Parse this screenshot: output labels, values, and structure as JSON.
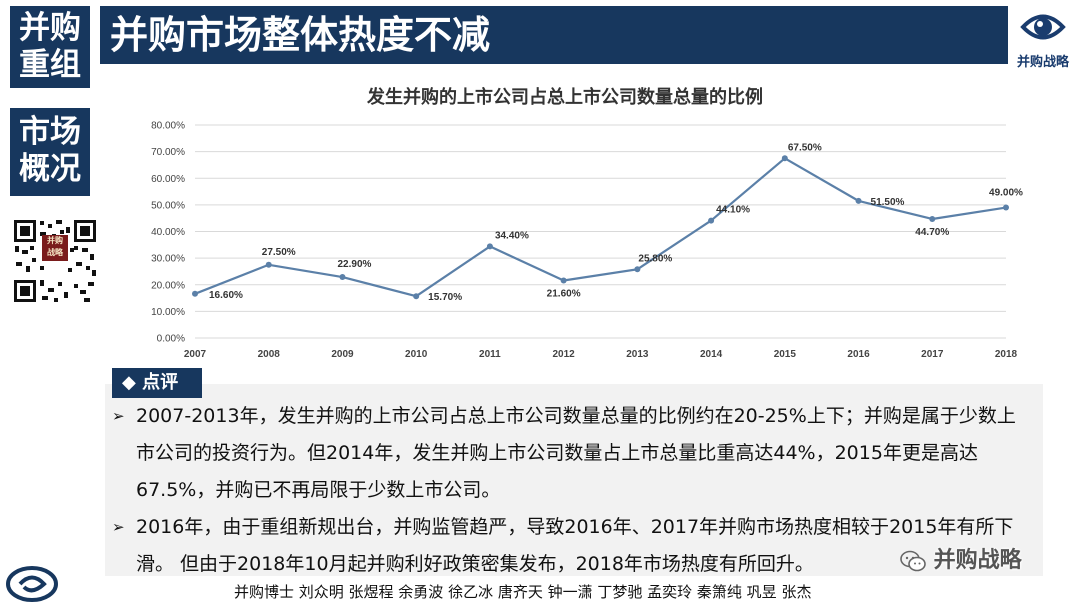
{
  "sidebar": {
    "box1": [
      "并购",
      "重组"
    ],
    "box2": [
      "市场",
      "概况"
    ],
    "qr_badge": "并购 战略"
  },
  "header": {
    "title": "并购市场整体热度不减"
  },
  "logo": {
    "text": "并购战略"
  },
  "colors": {
    "brand": "#17375E",
    "line": "#5B80A8",
    "panel": "#F2F2F2"
  },
  "chart_data": {
    "type": "line",
    "title": "发生并购的上市公司占总上市公司数量总量的比例",
    "x": [
      "2007",
      "2008",
      "2009",
      "2010",
      "2011",
      "2012",
      "2013",
      "2014",
      "2015",
      "2016",
      "2017",
      "2018"
    ],
    "values": [
      16.6,
      27.5,
      22.9,
      15.7,
      34.4,
      21.6,
      25.8,
      44.1,
      67.5,
      51.5,
      44.7,
      49.0
    ],
    "data_labels": [
      "16.60%",
      "27.50%",
      "22.90%",
      "15.70%",
      "34.40%",
      "21.60%",
      "25.80%",
      "44.10%",
      "67.50%",
      "51.50%",
      "44.70%",
      "49.00%"
    ],
    "y_ticks": [
      "0.00%",
      "10.00%",
      "20.00%",
      "30.00%",
      "40.00%",
      "50.00%",
      "60.00%",
      "70.00%",
      "80.00%"
    ],
    "ylim": [
      0,
      80
    ],
    "grid": true,
    "xlabel": "",
    "ylabel": ""
  },
  "comment": {
    "heading": "◆ 点评",
    "bullets": [
      "2007-2013年，发生并购的上市公司占总上市公司数量总量的比例约在20-25%上下；并购是属于少数上市公司的投资行为。但2014年，发生并购上市公司数量占上市总量比重高达44%，2015年更是高达67.5%，并购已不再局限于少数上市公司。",
      "2016年，由于重组新规出台，并购监管趋严，导致2016年、2017年并购市场热度相较于2015年有所下滑。 但由于2018年10月起并购利好政策密集发布，2018年市场热度有所回升。"
    ],
    "marker": "➢"
  },
  "footer": {
    "authors": "并购博士 刘众明 张煜程 余勇波 徐乙冰 唐齐天 钟一潇 丁梦驰 孟奕玲 秦箫纯 巩昱 张杰",
    "watermark": "并购战略"
  }
}
